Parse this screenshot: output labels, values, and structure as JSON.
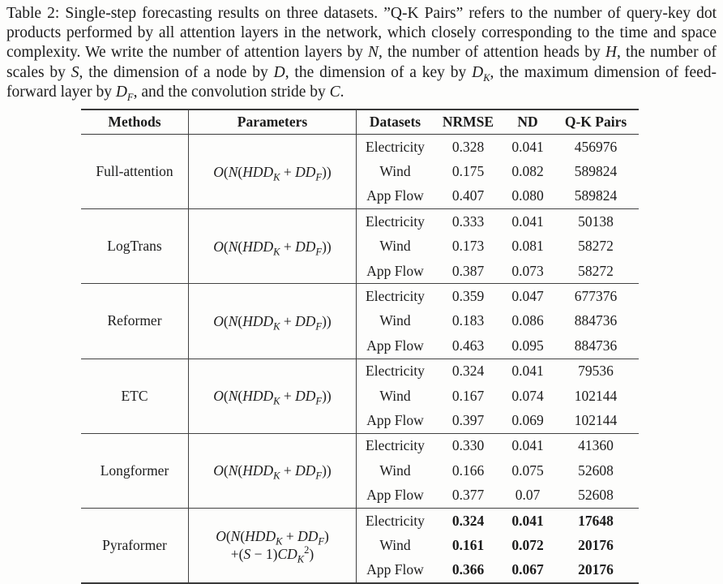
{
  "caption": {
    "text": "Table 2: Single-step forecasting results on three datasets. ”Q-K Pairs” refers to the number of query-key dot products performed by all attention layers in the network, which closely corresponding to the time and space complexity. We write the number of attention layers by *N*, the number of attention heads by *H*, the number of scales by *S*, the dimension of a node by *D*, the dimension of a key by *D*_{*K*}, the maximum dimension of feed-forward layer by *D*_{*F*}, and the convolution stride by *C*."
  },
  "table": {
    "headers": {
      "methods": "Methods",
      "parameters": "Parameters",
      "datasets": "Datasets",
      "nrmse": "NRMSE",
      "nd": "ND",
      "qk_pairs": "Q-K Pairs"
    },
    "groups": [
      {
        "method": "Full-attention",
        "parameters": "*O*(*N*(*HDD*_{*K*} + *DD*_{*F*}))",
        "parameters2": "",
        "rows": [
          [
            "Electricity",
            "0.328",
            "0.041",
            "456976"
          ],
          [
            "Wind",
            "0.175",
            "0.082",
            "589824"
          ],
          [
            "App Flow",
            "0.407",
            "0.080",
            "589824"
          ]
        ]
      },
      {
        "method": "LogTrans",
        "parameters": "*O*(*N*(*HDD*_{*K*} + *DD*_{*F*}))",
        "parameters2": "",
        "rows": [
          [
            "Electricity",
            "0.333",
            "0.041",
            "50138"
          ],
          [
            "Wind",
            "0.173",
            "0.081",
            "58272"
          ],
          [
            "App Flow",
            "0.387",
            "0.073",
            "58272"
          ]
        ]
      },
      {
        "method": "Reformer",
        "parameters": "*O*(*N*(*HDD*_{*K*} + *DD*_{*F*}))",
        "parameters2": "",
        "rows": [
          [
            "Electricity",
            "0.359",
            "0.047",
            "677376"
          ],
          [
            "Wind",
            "0.183",
            "0.086",
            "884736"
          ],
          [
            "App Flow",
            "0.463",
            "0.095",
            "884736"
          ]
        ]
      },
      {
        "method": "ETC",
        "parameters": "*O*(*N*(*HDD*_{*K*} + *DD*_{*F*}))",
        "parameters2": "",
        "rows": [
          [
            "Electricity",
            "0.324",
            "0.041",
            "79536"
          ],
          [
            "Wind",
            "0.167",
            "0.074",
            "102144"
          ],
          [
            "App Flow",
            "0.397",
            "0.069",
            "102144"
          ]
        ]
      },
      {
        "method": "Longformer",
        "parameters": "*O*(*N*(*HDD*_{*K*} + *DD*_{*F*}))",
        "parameters2": "",
        "rows": [
          [
            "Electricity",
            "0.330",
            "0.041",
            "41360"
          ],
          [
            "Wind",
            "0.166",
            "0.075",
            "52608"
          ],
          [
            "App Flow",
            "0.377",
            "0.07",
            "52608"
          ]
        ]
      },
      {
        "method": "Pyraformer",
        "parameters": "*O*(*N*(*HDD*_{*K*} + *DD*_{*F*})",
        "parameters2": "+(*S* − 1)*CD*_{*K*}^{2})",
        "rows": [
          [
            "Electricity",
            "0.324",
            "0.041",
            "17648"
          ],
          [
            "Wind",
            "0.161",
            "0.072",
            "20176"
          ],
          [
            "App Flow",
            "0.366",
            "0.067",
            "20176"
          ]
        ]
      }
    ]
  }
}
